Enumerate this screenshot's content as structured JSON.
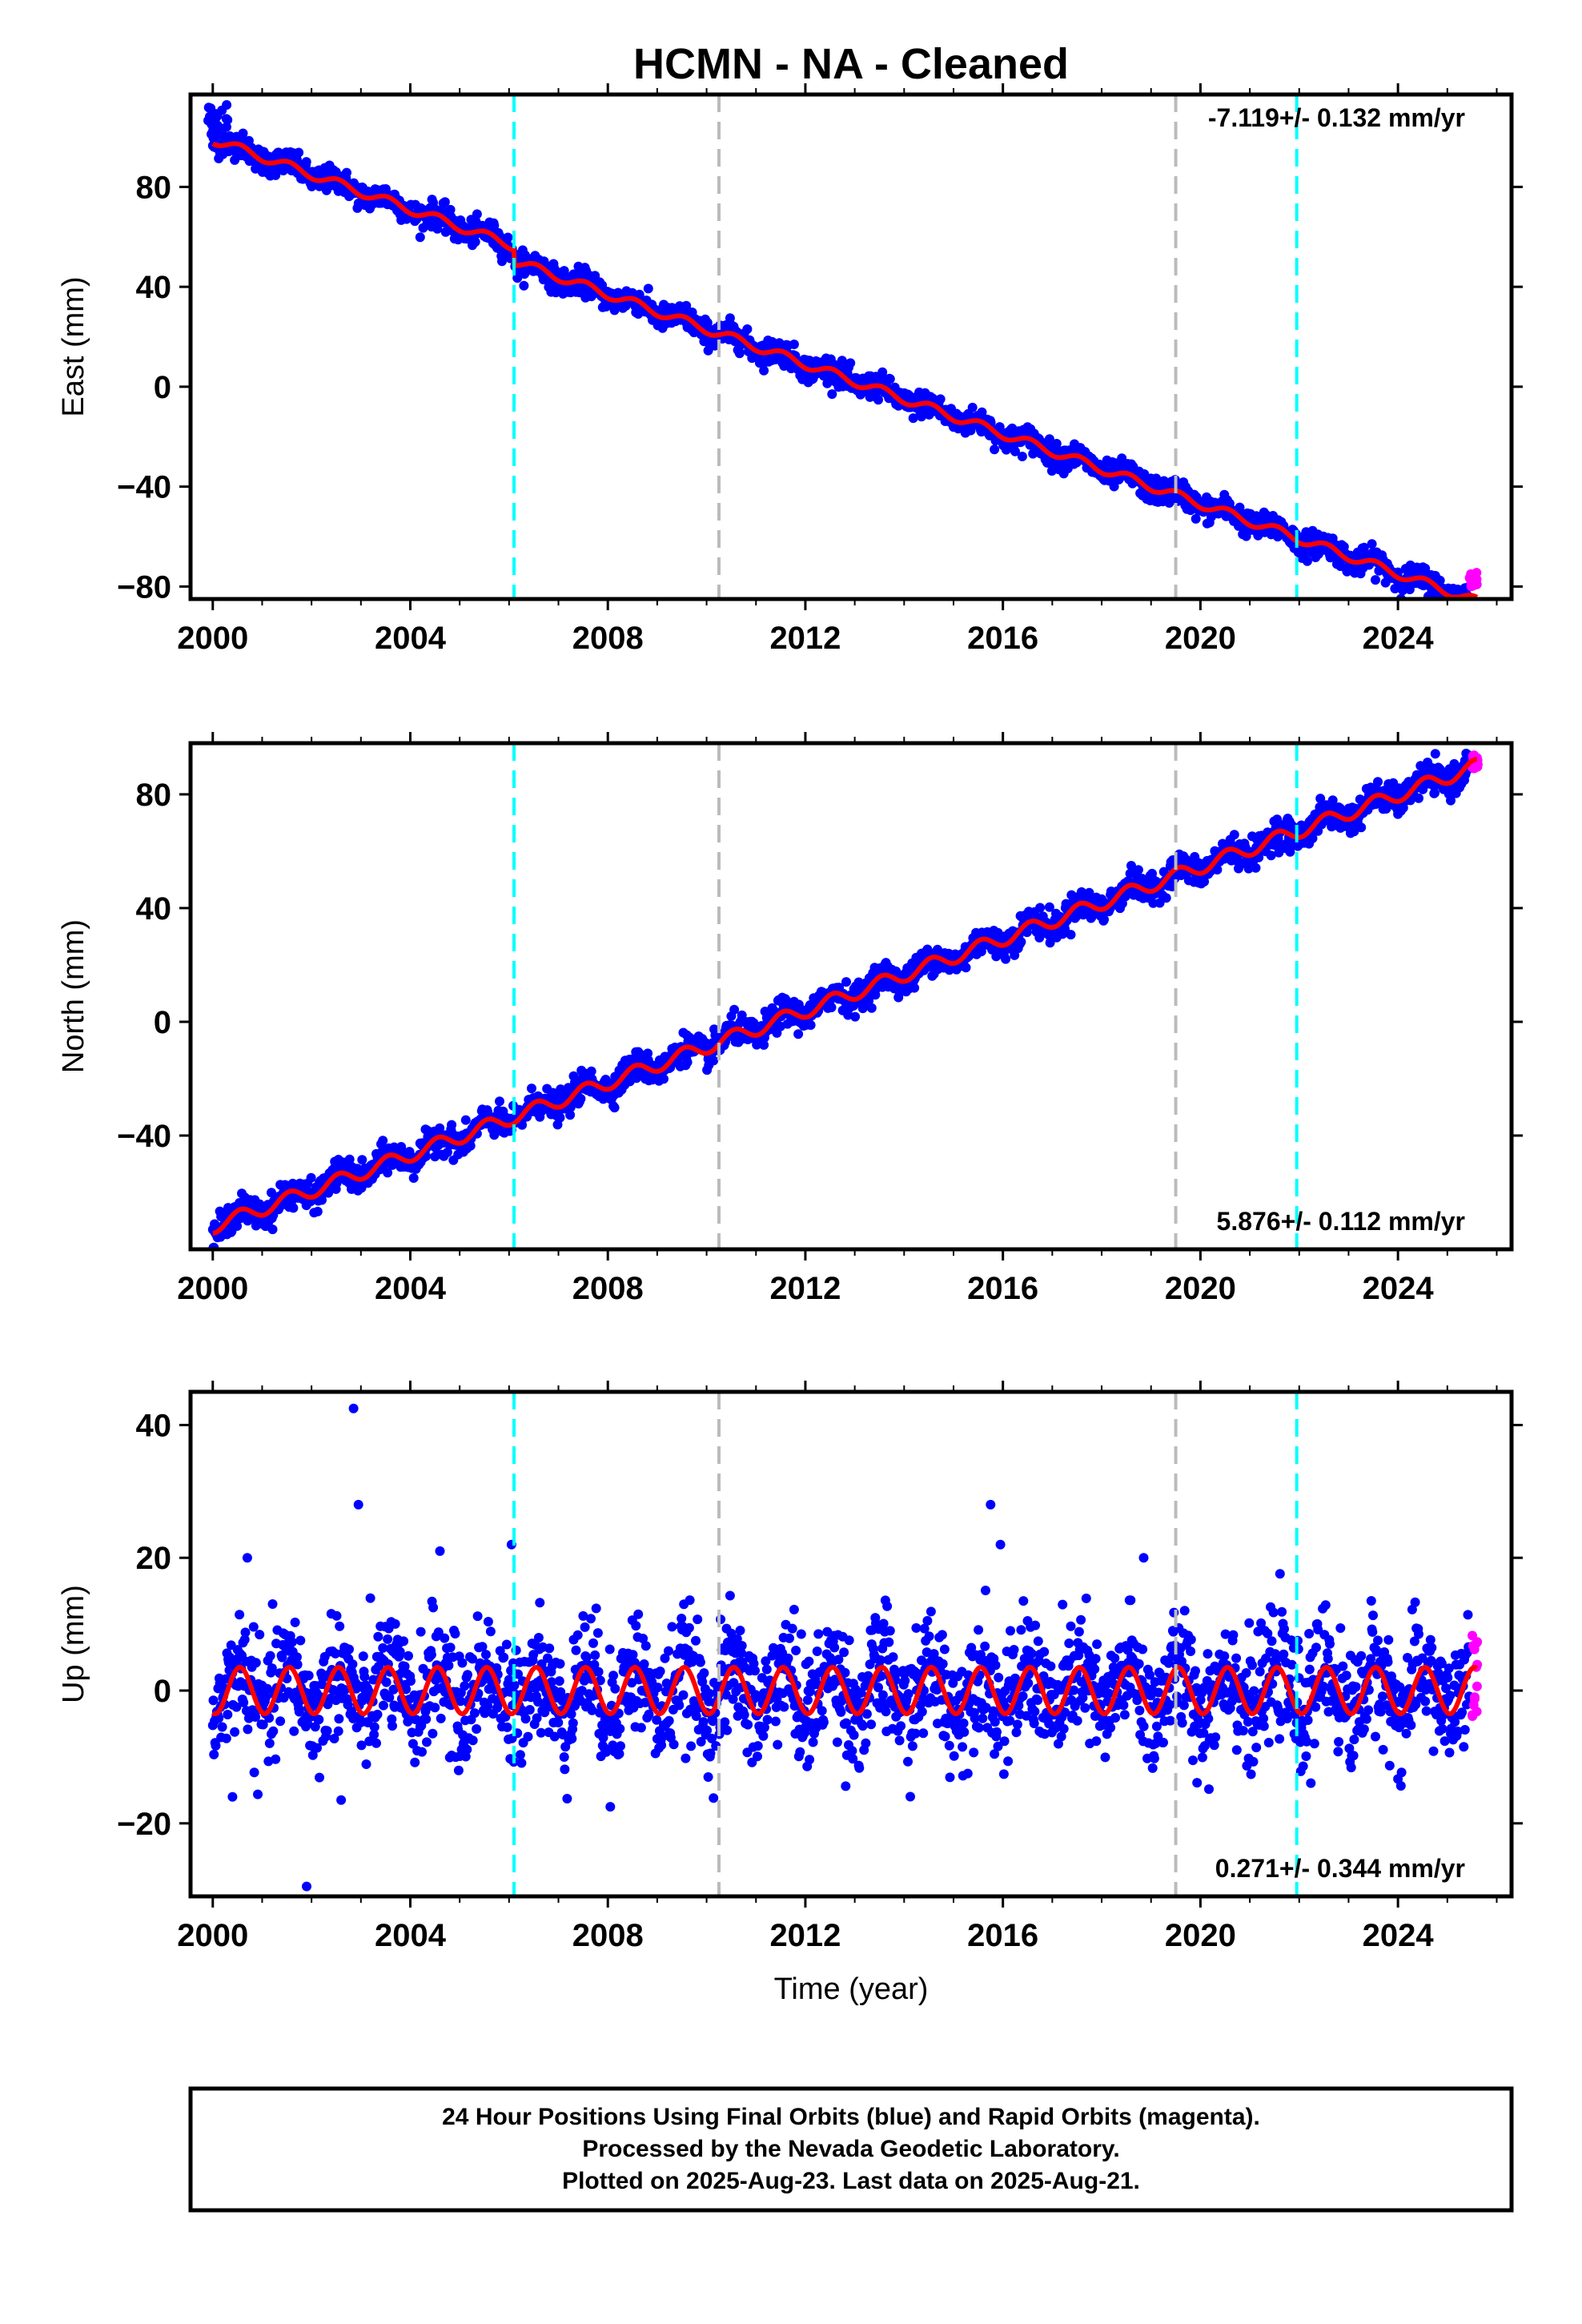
{
  "title": "HCMN  - NA - Cleaned",
  "colors": {
    "final_orbits": "#0000ff",
    "rapid_orbits": "#ff00ff",
    "model": "#ff0000",
    "equipment_change": "#00ffff",
    "earthquake": "#bbbbbb",
    "frame": "#000000"
  },
  "chart_data": [
    {
      "type": "scatter",
      "ylabel": "East (mm)",
      "xlabel": "",
      "x_ticks": [
        2000,
        2004,
        2008,
        2012,
        2016,
        2020,
        2024
      ],
      "y_ticks": [
        80,
        40,
        0,
        -40,
        -80
      ],
      "xlim": [
        1999.55,
        2026.3
      ],
      "ylim": [
        -85,
        117
      ],
      "rate_label": "-7.119+/- 0.132 mm/yr",
      "rate_position": "top-right",
      "trend": {
        "start": [
          2000.0,
          99
        ],
        "end": [
          2025.6,
          -80
        ]
      },
      "seasonal_amplitude": 1.8,
      "offsets": [
        {
          "year": 2006.1,
          "step": -6
        }
      ],
      "scatter_noise": 2.5,
      "early_outliers": {
        "x_range": [
          1999.9,
          2000.3
        ],
        "y_range": [
          100,
          113
        ]
      },
      "vlines": [
        {
          "year": 2006.1,
          "kind": "equipment_change"
        },
        {
          "year": 2010.25,
          "kind": "earthquake"
        },
        {
          "year": 2019.5,
          "kind": "earthquake"
        },
        {
          "year": 2021.95,
          "kind": "equipment_change"
        }
      ],
      "rapid_points": {
        "x_range": [
          2025.45,
          2025.62
        ],
        "y_range": [
          -80,
          -73
        ]
      }
    },
    {
      "type": "scatter",
      "ylabel": "North (mm)",
      "xlabel": "",
      "x_ticks": [
        2000,
        2004,
        2008,
        2012,
        2016,
        2020,
        2024
      ],
      "y_ticks": [
        80,
        40,
        0,
        -40
      ],
      "xlim": [
        1999.55,
        2026.3
      ],
      "ylim": [
        -80,
        98
      ],
      "rate_label": "5.876+/- 0.112 mm/yr",
      "rate_position": "bottom-right",
      "trend": {
        "start": [
          2000.0,
          -72
        ],
        "end": [
          2025.6,
          90
        ]
      },
      "seasonal_amplitude": 2.5,
      "offsets": [],
      "scatter_noise": 2.5,
      "vlines": [
        {
          "year": 2006.1,
          "kind": "equipment_change"
        },
        {
          "year": 2010.25,
          "kind": "earthquake"
        },
        {
          "year": 2019.5,
          "kind": "earthquake"
        },
        {
          "year": 2021.95,
          "kind": "equipment_change"
        }
      ],
      "rapid_points": {
        "x_range": [
          2025.5,
          2025.62
        ],
        "y_range": [
          89,
          94
        ]
      }
    },
    {
      "type": "scatter",
      "ylabel": "Up (mm)",
      "xlabel": "Time (year)",
      "x_ticks": [
        2000,
        2004,
        2008,
        2012,
        2016,
        2020,
        2024
      ],
      "y_ticks": [
        40,
        20,
        0,
        -20
      ],
      "xlim": [
        1999.55,
        2026.3
      ],
      "ylim": [
        -31,
        45
      ],
      "rate_label": "0.271+/- 0.344 mm/yr",
      "rate_position": "bottom-right",
      "trend": {
        "start": [
          2000.0,
          0
        ],
        "end": [
          2025.6,
          0
        ]
      },
      "seasonal_amplitude": 3.5,
      "offsets": [],
      "scatter_noise": 4.5,
      "outliers": [
        [
          2002.85,
          42.5
        ],
        [
          2002.95,
          28
        ],
        [
          2006.05,
          22
        ],
        [
          2000.7,
          20
        ],
        [
          2004.6,
          21
        ],
        [
          2015.75,
          28
        ],
        [
          2015.95,
          22
        ],
        [
          2018.85,
          20
        ],
        [
          2002.6,
          -16.5
        ],
        [
          2001.9,
          -29.5
        ],
        [
          2008.05,
          -17.5
        ],
        [
          2000.4,
          -16
        ]
      ],
      "vlines": [
        {
          "year": 2006.1,
          "kind": "equipment_change"
        },
        {
          "year": 2010.25,
          "kind": "earthquake"
        },
        {
          "year": 2019.5,
          "kind": "earthquake"
        },
        {
          "year": 2021.95,
          "kind": "equipment_change"
        }
      ],
      "rapid_points": {
        "x_range": [
          2025.5,
          2025.62
        ],
        "y_range": [
          -6,
          11
        ]
      }
    }
  ],
  "footer": {
    "line1": "24 Hour Positions Using Final Orbits (blue) and Rapid Orbits (magenta).",
    "line2": "Processed by the Nevada Geodetic Laboratory.",
    "line3": "Plotted on 2025-Aug-23. Last data on 2025-Aug-21."
  }
}
